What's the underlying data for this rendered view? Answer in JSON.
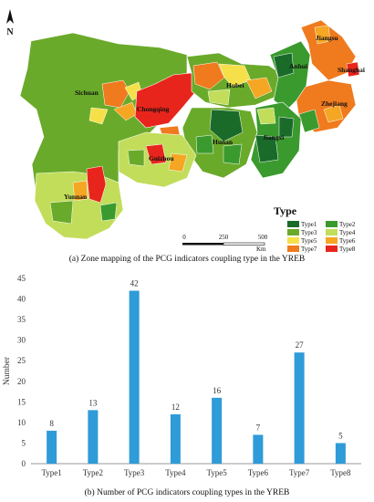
{
  "map": {
    "north_label": "N",
    "legend_title": "Type",
    "legend": [
      {
        "label": "Type1",
        "color": "#1a6b2a"
      },
      {
        "label": "Type2",
        "color": "#3a9a2e"
      },
      {
        "label": "Type3",
        "color": "#6aaa2a"
      },
      {
        "label": "Type4",
        "color": "#c2dd5a"
      },
      {
        "label": "Type5",
        "color": "#f5e04a"
      },
      {
        "label": "Type6",
        "color": "#f5a623"
      },
      {
        "label": "Type7",
        "color": "#f07a1e"
      },
      {
        "label": "Type8",
        "color": "#e8251c"
      }
    ],
    "scale_labels": [
      "0",
      "250",
      "500"
    ],
    "scale_unit": "Km",
    "provinces": [
      "Sichuan",
      "Chongqing",
      "Hubei",
      "Anhui",
      "Jiangsu",
      "Shanghai",
      "Zhejiang",
      "Hunan",
      "Jiangxi",
      "Guizhou",
      "Yunnan"
    ],
    "caption": "(a) Zone mapping of the PCG indicators coupling type in the YREB"
  },
  "chart_data": {
    "type": "bar",
    "categories": [
      "Type1",
      "Type2",
      "Type3",
      "Type4",
      "Type5",
      "Type6",
      "Type7",
      "Type8"
    ],
    "values": [
      8,
      13,
      42,
      12,
      16,
      7,
      27,
      5
    ],
    "ylabel": "Number",
    "xlabel": "",
    "ylim": [
      0,
      45
    ],
    "yticks": [
      0,
      5,
      10,
      15,
      20,
      25,
      30,
      35,
      40,
      45
    ],
    "grid": false,
    "bar_color": "#2f9bd8",
    "caption": "(b) Number of PCG indicators coupling types in the YREB"
  }
}
